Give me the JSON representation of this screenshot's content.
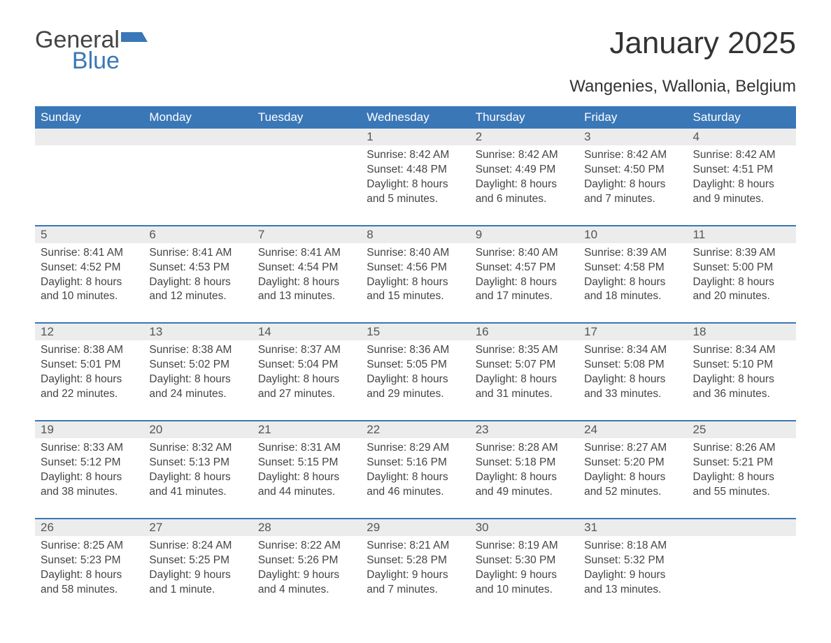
{
  "brand": {
    "word1": "General",
    "word2": "Blue",
    "accent_color": "#3a77b7"
  },
  "title": "January 2025",
  "location": "Wangenies, Wallonia, Belgium",
  "colors": {
    "header_bg": "#3a77b7",
    "header_text": "#ffffff",
    "daynum_bg": "#ececec",
    "text": "#444444",
    "page_bg": "#ffffff"
  },
  "day_headers": [
    "Sunday",
    "Monday",
    "Tuesday",
    "Wednesday",
    "Thursday",
    "Friday",
    "Saturday"
  ],
  "weeks": [
    [
      null,
      null,
      null,
      {
        "n": "1",
        "sunrise": "8:42 AM",
        "sunset": "4:48 PM",
        "daylight": "8 hours and 5 minutes."
      },
      {
        "n": "2",
        "sunrise": "8:42 AM",
        "sunset": "4:49 PM",
        "daylight": "8 hours and 6 minutes."
      },
      {
        "n": "3",
        "sunrise": "8:42 AM",
        "sunset": "4:50 PM",
        "daylight": "8 hours and 7 minutes."
      },
      {
        "n": "4",
        "sunrise": "8:42 AM",
        "sunset": "4:51 PM",
        "daylight": "8 hours and 9 minutes."
      }
    ],
    [
      {
        "n": "5",
        "sunrise": "8:41 AM",
        "sunset": "4:52 PM",
        "daylight": "8 hours and 10 minutes."
      },
      {
        "n": "6",
        "sunrise": "8:41 AM",
        "sunset": "4:53 PM",
        "daylight": "8 hours and 12 minutes."
      },
      {
        "n": "7",
        "sunrise": "8:41 AM",
        "sunset": "4:54 PM",
        "daylight": "8 hours and 13 minutes."
      },
      {
        "n": "8",
        "sunrise": "8:40 AM",
        "sunset": "4:56 PM",
        "daylight": "8 hours and 15 minutes."
      },
      {
        "n": "9",
        "sunrise": "8:40 AM",
        "sunset": "4:57 PM",
        "daylight": "8 hours and 17 minutes."
      },
      {
        "n": "10",
        "sunrise": "8:39 AM",
        "sunset": "4:58 PM",
        "daylight": "8 hours and 18 minutes."
      },
      {
        "n": "11",
        "sunrise": "8:39 AM",
        "sunset": "5:00 PM",
        "daylight": "8 hours and 20 minutes."
      }
    ],
    [
      {
        "n": "12",
        "sunrise": "8:38 AM",
        "sunset": "5:01 PM",
        "daylight": "8 hours and 22 minutes."
      },
      {
        "n": "13",
        "sunrise": "8:38 AM",
        "sunset": "5:02 PM",
        "daylight": "8 hours and 24 minutes."
      },
      {
        "n": "14",
        "sunrise": "8:37 AM",
        "sunset": "5:04 PM",
        "daylight": "8 hours and 27 minutes."
      },
      {
        "n": "15",
        "sunrise": "8:36 AM",
        "sunset": "5:05 PM",
        "daylight": "8 hours and 29 minutes."
      },
      {
        "n": "16",
        "sunrise": "8:35 AM",
        "sunset": "5:07 PM",
        "daylight": "8 hours and 31 minutes."
      },
      {
        "n": "17",
        "sunrise": "8:34 AM",
        "sunset": "5:08 PM",
        "daylight": "8 hours and 33 minutes."
      },
      {
        "n": "18",
        "sunrise": "8:34 AM",
        "sunset": "5:10 PM",
        "daylight": "8 hours and 36 minutes."
      }
    ],
    [
      {
        "n": "19",
        "sunrise": "8:33 AM",
        "sunset": "5:12 PM",
        "daylight": "8 hours and 38 minutes."
      },
      {
        "n": "20",
        "sunrise": "8:32 AM",
        "sunset": "5:13 PM",
        "daylight": "8 hours and 41 minutes."
      },
      {
        "n": "21",
        "sunrise": "8:31 AM",
        "sunset": "5:15 PM",
        "daylight": "8 hours and 44 minutes."
      },
      {
        "n": "22",
        "sunrise": "8:29 AM",
        "sunset": "5:16 PM",
        "daylight": "8 hours and 46 minutes."
      },
      {
        "n": "23",
        "sunrise": "8:28 AM",
        "sunset": "5:18 PM",
        "daylight": "8 hours and 49 minutes."
      },
      {
        "n": "24",
        "sunrise": "8:27 AM",
        "sunset": "5:20 PM",
        "daylight": "8 hours and 52 minutes."
      },
      {
        "n": "25",
        "sunrise": "8:26 AM",
        "sunset": "5:21 PM",
        "daylight": "8 hours and 55 minutes."
      }
    ],
    [
      {
        "n": "26",
        "sunrise": "8:25 AM",
        "sunset": "5:23 PM",
        "daylight": "8 hours and 58 minutes."
      },
      {
        "n": "27",
        "sunrise": "8:24 AM",
        "sunset": "5:25 PM",
        "daylight": "9 hours and 1 minute."
      },
      {
        "n": "28",
        "sunrise": "8:22 AM",
        "sunset": "5:26 PM",
        "daylight": "9 hours and 4 minutes."
      },
      {
        "n": "29",
        "sunrise": "8:21 AM",
        "sunset": "5:28 PM",
        "daylight": "9 hours and 7 minutes."
      },
      {
        "n": "30",
        "sunrise": "8:19 AM",
        "sunset": "5:30 PM",
        "daylight": "9 hours and 10 minutes."
      },
      {
        "n": "31",
        "sunrise": "8:18 AM",
        "sunset": "5:32 PM",
        "daylight": "9 hours and 13 minutes."
      },
      null
    ]
  ],
  "labels": {
    "sunrise": "Sunrise:",
    "sunset": "Sunset:",
    "daylight": "Daylight:"
  }
}
